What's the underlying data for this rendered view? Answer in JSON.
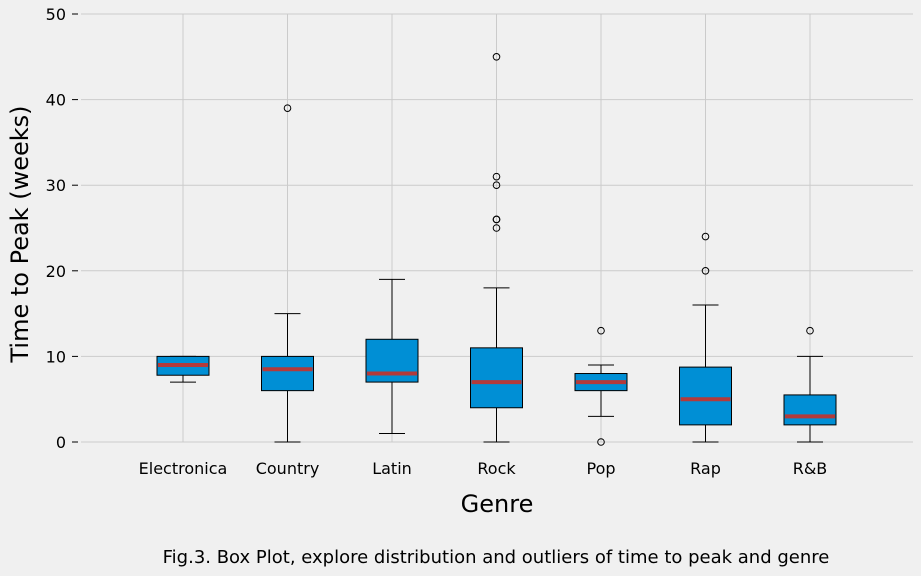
{
  "chart_data": {
    "type": "box",
    "categories": [
      "Electronica",
      "Country",
      "Latin",
      "Rock",
      "Pop",
      "Rap",
      "R&B"
    ],
    "boxes": [
      {
        "whisker_low": 7,
        "q1": 7.8,
        "median": 9,
        "q3": 10,
        "whisker_high": 10,
        "outliers": []
      },
      {
        "whisker_low": 0,
        "q1": 6,
        "median": 8.5,
        "q3": 10,
        "whisker_high": 15,
        "outliers": [
          39
        ]
      },
      {
        "whisker_low": 1,
        "q1": 7,
        "median": 8,
        "q3": 12,
        "whisker_high": 19,
        "outliers": []
      },
      {
        "whisker_low": 0,
        "q1": 4,
        "median": 7,
        "q3": 11,
        "whisker_high": 18,
        "outliers": [
          25,
          26,
          26,
          30,
          31,
          45
        ]
      },
      {
        "whisker_low": 3,
        "q1": 6,
        "median": 7,
        "q3": 8,
        "whisker_high": 9,
        "outliers": [
          0,
          13
        ]
      },
      {
        "whisker_low": 0,
        "q1": 2,
        "median": 5,
        "q3": 8.75,
        "whisker_high": 16,
        "outliers": [
          20,
          24
        ]
      },
      {
        "whisker_low": 0,
        "q1": 2,
        "median": 3,
        "q3": 5.5,
        "whisker_high": 10,
        "outliers": [
          13
        ]
      }
    ],
    "xlabel": "Genre",
    "ylabel": "Time to Peak (weeks)",
    "ylim": [
      0,
      50
    ],
    "yticks": [
      0,
      10,
      20,
      30,
      40,
      50
    ],
    "grid": true,
    "colors": {
      "box": "#008fd5",
      "median": "#b33a3a",
      "grid": "#cbcbcb",
      "background": "#f0f0f0"
    }
  },
  "caption": "Fig.3. Box Plot, explore distribution and outliers of time to peak and genre"
}
